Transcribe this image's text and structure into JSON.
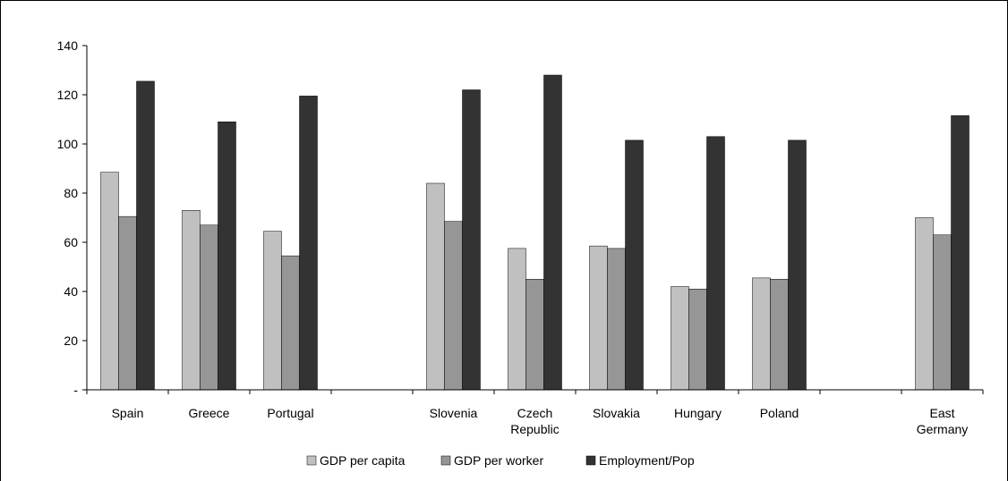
{
  "chart_data": {
    "type": "bar",
    "categories": [
      "Spain",
      "Greece",
      "Portugal",
      "",
      "Slovenia",
      "Czech Republic",
      "Slovakia",
      "Hungary",
      "Poland",
      "",
      "East Germany"
    ],
    "category_lines": [
      [
        "Spain"
      ],
      [
        "Greece"
      ],
      [
        "Portugal"
      ],
      [],
      [
        "Slovenia"
      ],
      [
        "Czech",
        "Republic"
      ],
      [
        "Slovakia"
      ],
      [
        "Hungary"
      ],
      [
        "Poland"
      ],
      [],
      [
        "East",
        "Germany"
      ]
    ],
    "series": [
      {
        "name": "GDP per capita",
        "color": "#c0c0c0",
        "values": [
          88.5,
          73,
          64.5,
          null,
          84,
          57.5,
          58.5,
          42,
          45.5,
          null,
          70
        ]
      },
      {
        "name": "GDP per worker",
        "color": "#969696",
        "values": [
          70.5,
          67,
          54.5,
          null,
          68.5,
          45,
          57.5,
          41,
          45,
          null,
          63
        ]
      },
      {
        "name": "Employment/Pop",
        "color": "#333333",
        "values": [
          125.5,
          109,
          119.5,
          null,
          122,
          128,
          101.5,
          103,
          101.5,
          null,
          111.5
        ]
      }
    ],
    "y_ticks": [
      {
        "value": 0,
        "label": "-"
      },
      {
        "value": 20,
        "label": "20"
      },
      {
        "value": 40,
        "label": "40"
      },
      {
        "value": 60,
        "label": "60"
      },
      {
        "value": 80,
        "label": "80"
      },
      {
        "value": 100,
        "label": "100"
      },
      {
        "value": 120,
        "label": "120"
      },
      {
        "value": 140,
        "label": "140"
      }
    ],
    "ylim": [
      0,
      140
    ],
    "grid": false,
    "legend_position": "bottom-center",
    "title": "",
    "xlabel": "",
    "ylabel": ""
  }
}
